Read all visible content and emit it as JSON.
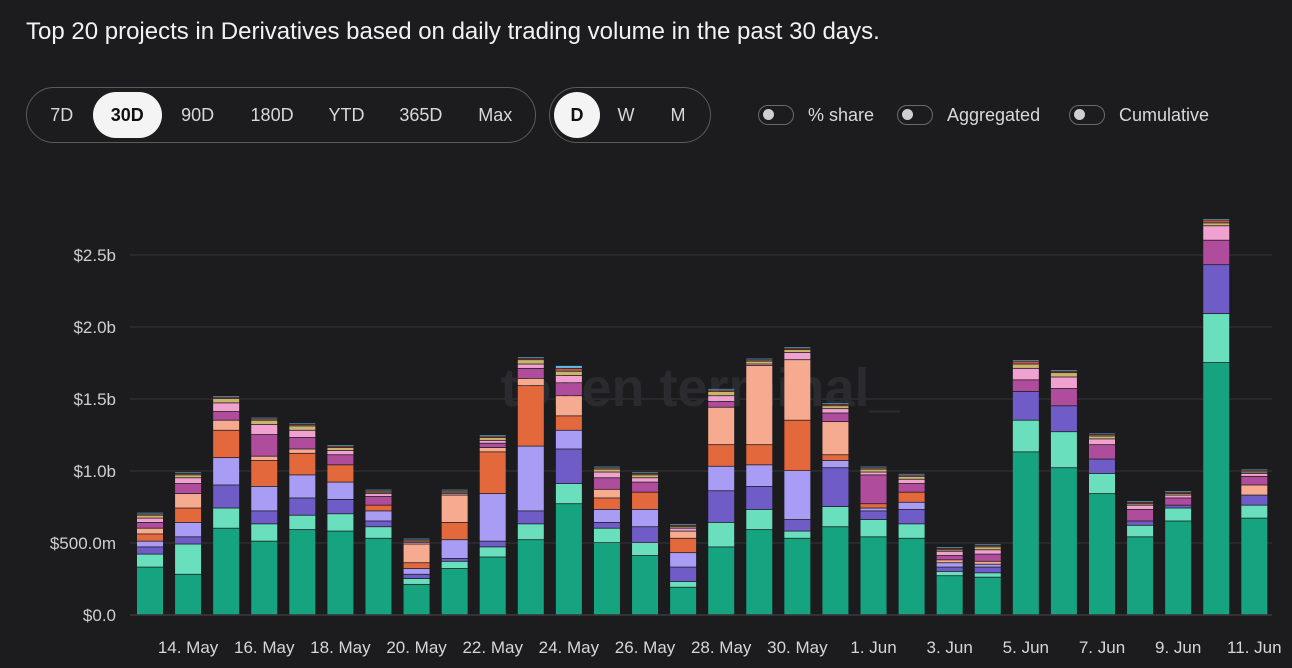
{
  "title": "Top 20 projects in Derivatives based on daily trading volume in the past 30 days.",
  "range_buttons": [
    {
      "label": "7D",
      "active": false
    },
    {
      "label": "30D",
      "active": true
    },
    {
      "label": "90D",
      "active": false
    },
    {
      "label": "180D",
      "active": false
    },
    {
      "label": "YTD",
      "active": false
    },
    {
      "label": "365D",
      "active": false
    },
    {
      "label": "Max",
      "active": false
    }
  ],
  "granularity_buttons": [
    {
      "label": "D",
      "active": true
    },
    {
      "label": "W",
      "active": false
    },
    {
      "label": "M",
      "active": false
    }
  ],
  "toggles": [
    {
      "label": "% share",
      "on": false
    },
    {
      "label": "Aggregated",
      "on": false
    },
    {
      "label": "Cumulative",
      "on": false
    }
  ],
  "watermark": "token terminal_",
  "chart_data": {
    "type": "bar",
    "stacked": true,
    "grid": true,
    "unit": "USD billions",
    "ylim": [
      0,
      2.8
    ],
    "yticks": [
      {
        "value": 0,
        "label": "$0.0"
      },
      {
        "value": 0.5,
        "label": "$500.0m"
      },
      {
        "value": 1.0,
        "label": "$1.0b"
      },
      {
        "value": 1.5,
        "label": "$1.5b"
      },
      {
        "value": 2.0,
        "label": "$2.0b"
      },
      {
        "value": 2.5,
        "label": "$2.5b"
      }
    ],
    "categories": [
      "13 May",
      "14 May",
      "15 May",
      "16 May",
      "17 May",
      "18 May",
      "19 May",
      "20 May",
      "21 May",
      "22 May",
      "23 May",
      "24 May",
      "25 May",
      "26 May",
      "27 May",
      "28 May",
      "29 May",
      "30 May",
      "31 May",
      "1 Jun",
      "2 Jun",
      "3 Jun",
      "4 Jun",
      "5 Jun",
      "6 Jun",
      "7 Jun",
      "8 Jun",
      "9 Jun",
      "10 Jun",
      "11 Jun"
    ],
    "xtick_labels": [
      {
        "index": 1,
        "label": "14. May"
      },
      {
        "index": 3,
        "label": "16. May"
      },
      {
        "index": 5,
        "label": "18. May"
      },
      {
        "index": 7,
        "label": "20. May"
      },
      {
        "index": 9,
        "label": "22. May"
      },
      {
        "index": 11,
        "label": "24. May"
      },
      {
        "index": 13,
        "label": "26. May"
      },
      {
        "index": 15,
        "label": "28. May"
      },
      {
        "index": 17,
        "label": "30. May"
      },
      {
        "index": 19,
        "label": "1. Jun"
      },
      {
        "index": 21,
        "label": "3. Jun"
      },
      {
        "index": 23,
        "label": "5. Jun"
      },
      {
        "index": 25,
        "label": "7. Jun"
      },
      {
        "index": 27,
        "label": "9. Jun"
      },
      {
        "index": 29,
        "label": "11. Jun"
      }
    ],
    "series": [
      {
        "color": "#16a37f",
        "values": [
          0.33,
          0.28,
          0.6,
          0.51,
          0.59,
          0.58,
          0.53,
          0.21,
          0.32,
          0.4,
          0.52,
          0.77,
          0.5,
          0.41,
          0.19,
          0.47,
          0.59,
          0.53,
          0.61,
          0.54,
          0.53,
          0.27,
          0.26,
          1.13,
          1.02,
          0.84,
          0.54,
          0.65,
          1.75,
          0.67
        ]
      },
      {
        "color": "#6adfbd",
        "values": [
          0.09,
          0.21,
          0.14,
          0.12,
          0.1,
          0.12,
          0.08,
          0.04,
          0.05,
          0.07,
          0.11,
          0.14,
          0.1,
          0.09,
          0.04,
          0.17,
          0.14,
          0.05,
          0.14,
          0.12,
          0.1,
          0.03,
          0.03,
          0.22,
          0.25,
          0.14,
          0.08,
          0.09,
          0.34,
          0.09
        ]
      },
      {
        "color": "#6f5cc6",
        "values": [
          0.05,
          0.05,
          0.16,
          0.09,
          0.12,
          0.1,
          0.04,
          0.03,
          0.02,
          0.04,
          0.09,
          0.24,
          0.04,
          0.11,
          0.1,
          0.22,
          0.16,
          0.08,
          0.27,
          0.06,
          0.1,
          0.03,
          0.04,
          0.2,
          0.18,
          0.1,
          0.03,
          0.02,
          0.34,
          0.07
        ]
      },
      {
        "color": "#a99cf5",
        "values": [
          0.04,
          0.1,
          0.19,
          0.17,
          0.16,
          0.12,
          0.07,
          0.04,
          0.13,
          0.33,
          0.45,
          0.13,
          0.09,
          0.12,
          0.1,
          0.17,
          0.15,
          0.34,
          0.05,
          0.02,
          0.05,
          0.03,
          0.02,
          0.0,
          0.0,
          0.0,
          0.0,
          0.0,
          0.0,
          0.0
        ]
      },
      {
        "color": "#e3683c",
        "values": [
          0.05,
          0.1,
          0.19,
          0.18,
          0.15,
          0.12,
          0.04,
          0.04,
          0.12,
          0.29,
          0.42,
          0.1,
          0.08,
          0.12,
          0.1,
          0.15,
          0.14,
          0.35,
          0.04,
          0.03,
          0.07,
          0.0,
          0.0,
          0.0,
          0.0,
          0.0,
          0.0,
          0.0,
          0.0,
          0.0
        ]
      },
      {
        "color": "#f6ab90",
        "values": [
          0.04,
          0.1,
          0.07,
          0.03,
          0.03,
          0.0,
          0.0,
          0.13,
          0.19,
          0.03,
          0.05,
          0.14,
          0.06,
          0.0,
          0.05,
          0.26,
          0.55,
          0.42,
          0.23,
          0.0,
          0.0,
          0.02,
          0.02,
          0.0,
          0.0,
          0.0,
          0.0,
          0.0,
          0.0,
          0.07
        ]
      },
      {
        "color": "#b04c9c",
        "values": [
          0.04,
          0.07,
          0.06,
          0.15,
          0.08,
          0.07,
          0.06,
          0.0,
          0.0,
          0.03,
          0.07,
          0.09,
          0.08,
          0.07,
          0.0,
          0.04,
          0.0,
          0.0,
          0.06,
          0.2,
          0.06,
          0.03,
          0.05,
          0.08,
          0.12,
          0.1,
          0.08,
          0.05,
          0.17,
          0.06
        ]
      },
      {
        "color": "#f0a1d0",
        "values": [
          0.03,
          0.04,
          0.06,
          0.07,
          0.05,
          0.03,
          0.02,
          0.01,
          0.01,
          0.02,
          0.03,
          0.05,
          0.04,
          0.03,
          0.02,
          0.04,
          0.01,
          0.05,
          0.03,
          0.02,
          0.03,
          0.03,
          0.03,
          0.08,
          0.08,
          0.04,
          0.03,
          0.02,
          0.1,
          0.02
        ]
      },
      {
        "color": "#c8b46a",
        "values": [
          0.02,
          0.02,
          0.03,
          0.03,
          0.03,
          0.02,
          0.01,
          0.01,
          0.01,
          0.02,
          0.03,
          0.03,
          0.02,
          0.02,
          0.01,
          0.03,
          0.02,
          0.02,
          0.02,
          0.02,
          0.02,
          0.01,
          0.02,
          0.03,
          0.03,
          0.02,
          0.01,
          0.01,
          0.02,
          0.01
        ]
      },
      {
        "color": "#c2584a",
        "values": [
          0.01,
          0.01,
          0.01,
          0.01,
          0.01,
          0.01,
          0.01,
          0.01,
          0.01,
          0.01,
          0.01,
          0.02,
          0.01,
          0.01,
          0.01,
          0.01,
          0.01,
          0.01,
          0.01,
          0.01,
          0.01,
          0.01,
          0.01,
          0.02,
          0.01,
          0.01,
          0.01,
          0.01,
          0.02,
          0.01
        ]
      },
      {
        "color": "#5fb8e6",
        "values": [
          0.01,
          0.01,
          0.01,
          0.01,
          0.01,
          0.01,
          0.01,
          0.01,
          0.01,
          0.01,
          0.01,
          0.02,
          0.01,
          0.01,
          0.01,
          0.01,
          0.01,
          0.01,
          0.01,
          0.01,
          0.01,
          0.01,
          0.01,
          0.01,
          0.01,
          0.01,
          0.01,
          0.01,
          0.01,
          0.01
        ]
      }
    ]
  }
}
